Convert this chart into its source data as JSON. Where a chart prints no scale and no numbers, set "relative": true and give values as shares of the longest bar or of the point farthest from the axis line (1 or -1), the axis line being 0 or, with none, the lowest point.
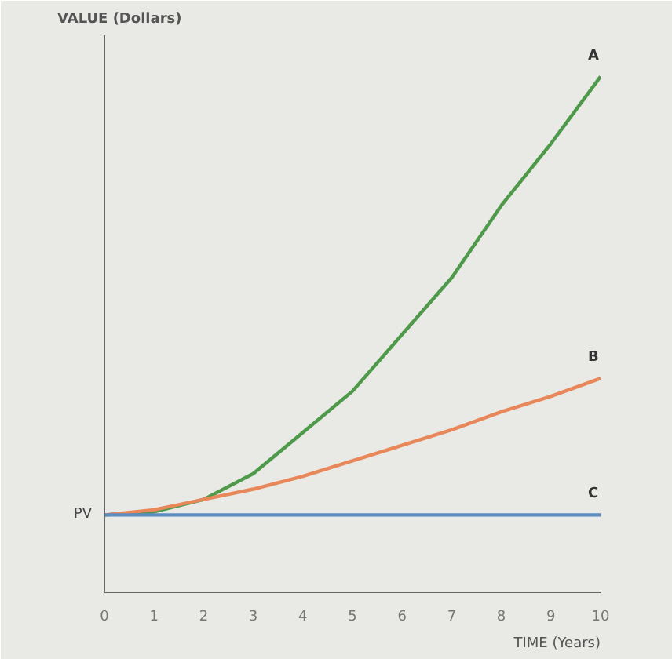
{
  "chart_data": {
    "type": "line",
    "relative": true,
    "ylabel": "VALUE (Dollars)",
    "xlabel": "TIME (Years)",
    "x": [
      0,
      1,
      2,
      3,
      4,
      5,
      6,
      7,
      8,
      9,
      10
    ],
    "xlim": [
      0,
      10
    ],
    "xticks": [
      0,
      1,
      2,
      3,
      4,
      5,
      6,
      7,
      8,
      9,
      10
    ],
    "legend": false,
    "marker": "none",
    "line_style": "solid",
    "series": [
      {
        "name": "A",
        "color": "#4e9a4a",
        "values": [
          0.15,
          0.156,
          0.18,
          0.23,
          0.31,
          0.39,
          0.5,
          0.61,
          0.75,
          0.87,
          1.0
        ]
      },
      {
        "name": "B",
        "color": "#e8875a",
        "values": [
          0.15,
          0.16,
          0.18,
          0.2,
          0.225,
          0.255,
          0.285,
          0.315,
          0.35,
          0.38,
          0.415
        ]
      },
      {
        "name": "C",
        "color": "#5b8cc4",
        "values": [
          0.15,
          0.15,
          0.15,
          0.15,
          0.15,
          0.15,
          0.15,
          0.15,
          0.15,
          0.15,
          0.15
        ]
      }
    ],
    "annotations": [
      "PV"
    ]
  }
}
